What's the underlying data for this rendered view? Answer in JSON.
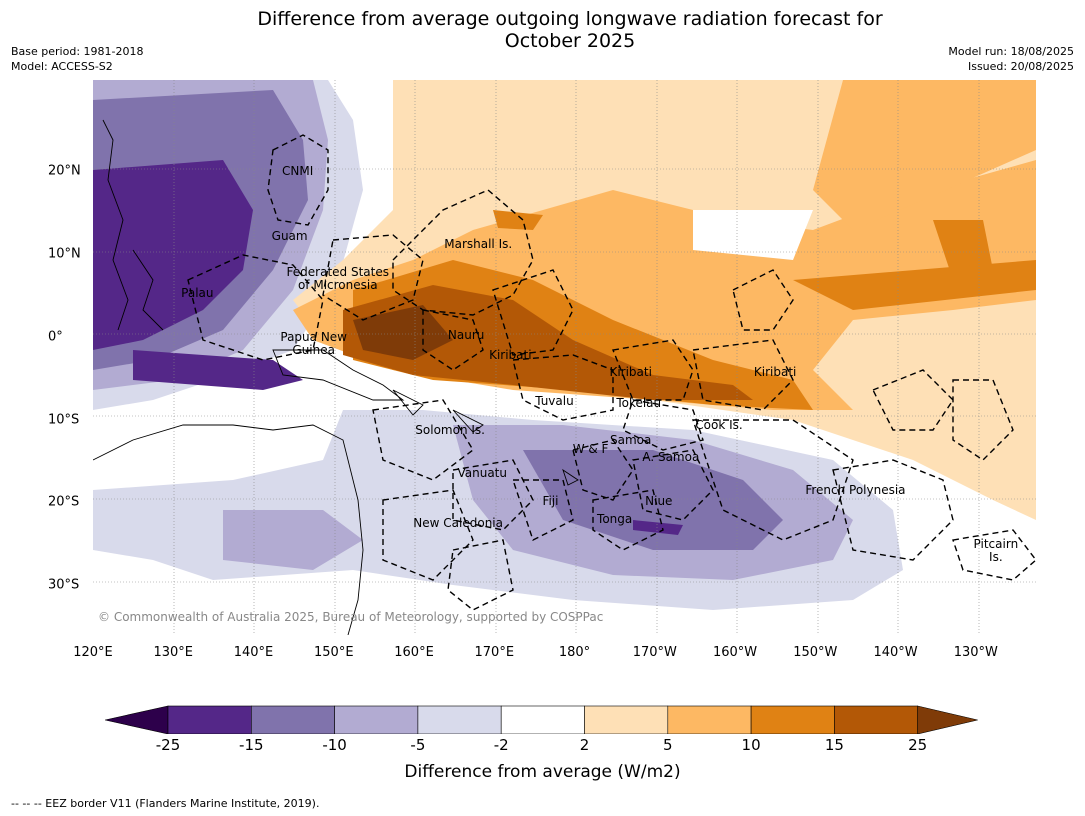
{
  "title_line1": "Difference from average outgoing longwave radiation forecast for",
  "title_line2": "October 2025",
  "meta_left": {
    "base_period": "Base period: 1981-2018",
    "model": "Model: ACCESS-S2"
  },
  "meta_right": {
    "model_run": "Model run: 18/08/2025",
    "issued": "Issued: 20/08/2025"
  },
  "copyright": "© Commonwealth of Australia 2025, Bureau of Meteorology, supported by COSPPac",
  "footnote": "--  --  -- EEZ border V11 (Flanders Marine Institute, 2019).",
  "map": {
    "lon_range": [
      120,
      237.5
    ],
    "lat_range": [
      -36,
      31
    ],
    "lon_ticks": [
      "120°E",
      "130°E",
      "140°E",
      "150°E",
      "160°E",
      "170°E",
      "180°",
      "170°W",
      "160°W",
      "150°W",
      "140°W",
      "130°W"
    ],
    "lat_ticks": [
      "20°N",
      "10°N",
      "0°",
      "10°S",
      "20°S",
      "30°S"
    ],
    "regions": [
      {
        "name": "CNMI",
        "lon": 145.5,
        "lat": 20.0
      },
      {
        "name": "Guam",
        "lon": 144.5,
        "lat": 12.2
      },
      {
        "name": "Marshall Is.",
        "lon": 168.0,
        "lat": 11.2
      },
      {
        "name": "Federated States",
        "lon": 150.5,
        "lat": 7.8
      },
      {
        "name": "of Micronesia",
        "lon": 150.5,
        "lat": 6.2
      },
      {
        "name": "Palau",
        "lon": 133.0,
        "lat": 5.3
      },
      {
        "name": "Papua New",
        "lon": 147.5,
        "lat": 0.0
      },
      {
        "name": "Guinea",
        "lon": 147.5,
        "lat": -1.6
      },
      {
        "name": "Nauru",
        "lon": 166.5,
        "lat": 0.2
      },
      {
        "name": "Kiribati",
        "lon": 172.0,
        "lat": -2.2
      },
      {
        "name": "Kiribati",
        "lon": 187.0,
        "lat": -4.2
      },
      {
        "name": "Kiribati",
        "lon": 205.0,
        "lat": -4.2
      },
      {
        "name": "Tuvalu",
        "lon": 177.5,
        "lat": -7.7
      },
      {
        "name": "Tokelau",
        "lon": 188.0,
        "lat": -8.0
      },
      {
        "name": "Cook Is.",
        "lon": 198.0,
        "lat": -10.6
      },
      {
        "name": "Solomon Is.",
        "lon": 164.5,
        "lat": -11.2
      },
      {
        "name": "Samoa",
        "lon": 187.0,
        "lat": -12.5
      },
      {
        "name": "W & F",
        "lon": 182.0,
        "lat": -13.5
      },
      {
        "name": "A. Samoa",
        "lon": 192.0,
        "lat": -14.5
      },
      {
        "name": "Vanuatu",
        "lon": 168.5,
        "lat": -16.5
      },
      {
        "name": "Fiji",
        "lon": 177.0,
        "lat": -19.8
      },
      {
        "name": "Niue",
        "lon": 190.5,
        "lat": -19.8
      },
      {
        "name": "French Polynesia",
        "lon": 215.0,
        "lat": -18.5
      },
      {
        "name": "Tonga",
        "lon": 185.0,
        "lat": -22.0
      },
      {
        "name": "New Caledonia",
        "lon": 165.5,
        "lat": -22.5
      },
      {
        "name": "Pitcairn",
        "lon": 232.5,
        "lat": -25.0
      },
      {
        "name": "Is.",
        "lon": 232.5,
        "lat": -26.6
      }
    ]
  },
  "colorbar": {
    "label": "Difference from average (W/m2)",
    "ticks": [
      "-25",
      "-15",
      "-10",
      "-5",
      "-2",
      "2",
      "5",
      "10",
      "15",
      "25"
    ],
    "under_color": "#2d004b",
    "over_color": "#7f3b08",
    "colors": [
      "#542788",
      "#8073ac",
      "#b2abd2",
      "#d8daeb",
      "#ffffff",
      "#fee0b6",
      "#fdb863",
      "#e08214",
      "#b35806"
    ]
  }
}
